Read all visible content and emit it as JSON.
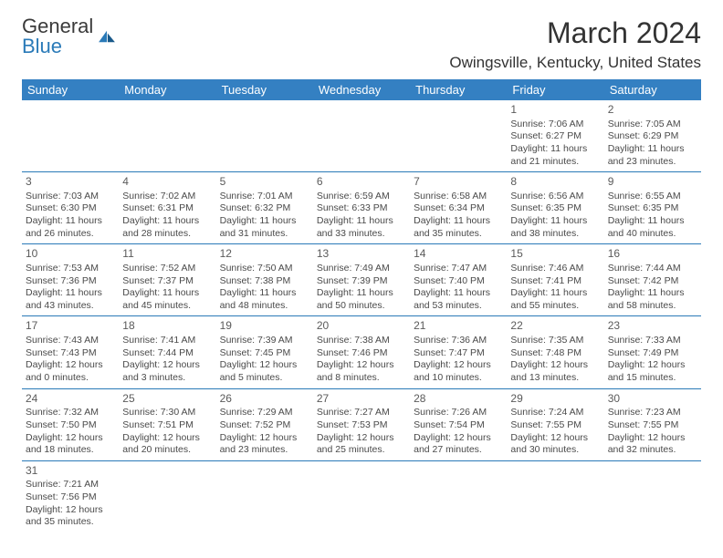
{
  "logo": {
    "text_general": "General",
    "text_blue": "Blue"
  },
  "header": {
    "month_title": "March 2024",
    "location": "Owingsville, Kentucky, United States"
  },
  "colors": {
    "header_bg": "#3480c2",
    "header_text": "#ffffff",
    "border": "#2a7ab8",
    "body_text": "#4a4a4a",
    "logo_blue": "#2a7ab8"
  },
  "weekdays": [
    "Sunday",
    "Monday",
    "Tuesday",
    "Wednesday",
    "Thursday",
    "Friday",
    "Saturday"
  ],
  "weeks": [
    [
      null,
      null,
      null,
      null,
      null,
      {
        "day": "1",
        "sunrise": "Sunrise: 7:06 AM",
        "sunset": "Sunset: 6:27 PM",
        "daylight": "Daylight: 11 hours and 21 minutes."
      },
      {
        "day": "2",
        "sunrise": "Sunrise: 7:05 AM",
        "sunset": "Sunset: 6:29 PM",
        "daylight": "Daylight: 11 hours and 23 minutes."
      }
    ],
    [
      {
        "day": "3",
        "sunrise": "Sunrise: 7:03 AM",
        "sunset": "Sunset: 6:30 PM",
        "daylight": "Daylight: 11 hours and 26 minutes."
      },
      {
        "day": "4",
        "sunrise": "Sunrise: 7:02 AM",
        "sunset": "Sunset: 6:31 PM",
        "daylight": "Daylight: 11 hours and 28 minutes."
      },
      {
        "day": "5",
        "sunrise": "Sunrise: 7:01 AM",
        "sunset": "Sunset: 6:32 PM",
        "daylight": "Daylight: 11 hours and 31 minutes."
      },
      {
        "day": "6",
        "sunrise": "Sunrise: 6:59 AM",
        "sunset": "Sunset: 6:33 PM",
        "daylight": "Daylight: 11 hours and 33 minutes."
      },
      {
        "day": "7",
        "sunrise": "Sunrise: 6:58 AM",
        "sunset": "Sunset: 6:34 PM",
        "daylight": "Daylight: 11 hours and 35 minutes."
      },
      {
        "day": "8",
        "sunrise": "Sunrise: 6:56 AM",
        "sunset": "Sunset: 6:35 PM",
        "daylight": "Daylight: 11 hours and 38 minutes."
      },
      {
        "day": "9",
        "sunrise": "Sunrise: 6:55 AM",
        "sunset": "Sunset: 6:35 PM",
        "daylight": "Daylight: 11 hours and 40 minutes."
      }
    ],
    [
      {
        "day": "10",
        "sunrise": "Sunrise: 7:53 AM",
        "sunset": "Sunset: 7:36 PM",
        "daylight": "Daylight: 11 hours and 43 minutes."
      },
      {
        "day": "11",
        "sunrise": "Sunrise: 7:52 AM",
        "sunset": "Sunset: 7:37 PM",
        "daylight": "Daylight: 11 hours and 45 minutes."
      },
      {
        "day": "12",
        "sunrise": "Sunrise: 7:50 AM",
        "sunset": "Sunset: 7:38 PM",
        "daylight": "Daylight: 11 hours and 48 minutes."
      },
      {
        "day": "13",
        "sunrise": "Sunrise: 7:49 AM",
        "sunset": "Sunset: 7:39 PM",
        "daylight": "Daylight: 11 hours and 50 minutes."
      },
      {
        "day": "14",
        "sunrise": "Sunrise: 7:47 AM",
        "sunset": "Sunset: 7:40 PM",
        "daylight": "Daylight: 11 hours and 53 minutes."
      },
      {
        "day": "15",
        "sunrise": "Sunrise: 7:46 AM",
        "sunset": "Sunset: 7:41 PM",
        "daylight": "Daylight: 11 hours and 55 minutes."
      },
      {
        "day": "16",
        "sunrise": "Sunrise: 7:44 AM",
        "sunset": "Sunset: 7:42 PM",
        "daylight": "Daylight: 11 hours and 58 minutes."
      }
    ],
    [
      {
        "day": "17",
        "sunrise": "Sunrise: 7:43 AM",
        "sunset": "Sunset: 7:43 PM",
        "daylight": "Daylight: 12 hours and 0 minutes."
      },
      {
        "day": "18",
        "sunrise": "Sunrise: 7:41 AM",
        "sunset": "Sunset: 7:44 PM",
        "daylight": "Daylight: 12 hours and 3 minutes."
      },
      {
        "day": "19",
        "sunrise": "Sunrise: 7:39 AM",
        "sunset": "Sunset: 7:45 PM",
        "daylight": "Daylight: 12 hours and 5 minutes."
      },
      {
        "day": "20",
        "sunrise": "Sunrise: 7:38 AM",
        "sunset": "Sunset: 7:46 PM",
        "daylight": "Daylight: 12 hours and 8 minutes."
      },
      {
        "day": "21",
        "sunrise": "Sunrise: 7:36 AM",
        "sunset": "Sunset: 7:47 PM",
        "daylight": "Daylight: 12 hours and 10 minutes."
      },
      {
        "day": "22",
        "sunrise": "Sunrise: 7:35 AM",
        "sunset": "Sunset: 7:48 PM",
        "daylight": "Daylight: 12 hours and 13 minutes."
      },
      {
        "day": "23",
        "sunrise": "Sunrise: 7:33 AM",
        "sunset": "Sunset: 7:49 PM",
        "daylight": "Daylight: 12 hours and 15 minutes."
      }
    ],
    [
      {
        "day": "24",
        "sunrise": "Sunrise: 7:32 AM",
        "sunset": "Sunset: 7:50 PM",
        "daylight": "Daylight: 12 hours and 18 minutes."
      },
      {
        "day": "25",
        "sunrise": "Sunrise: 7:30 AM",
        "sunset": "Sunset: 7:51 PM",
        "daylight": "Daylight: 12 hours and 20 minutes."
      },
      {
        "day": "26",
        "sunrise": "Sunrise: 7:29 AM",
        "sunset": "Sunset: 7:52 PM",
        "daylight": "Daylight: 12 hours and 23 minutes."
      },
      {
        "day": "27",
        "sunrise": "Sunrise: 7:27 AM",
        "sunset": "Sunset: 7:53 PM",
        "daylight": "Daylight: 12 hours and 25 minutes."
      },
      {
        "day": "28",
        "sunrise": "Sunrise: 7:26 AM",
        "sunset": "Sunset: 7:54 PM",
        "daylight": "Daylight: 12 hours and 27 minutes."
      },
      {
        "day": "29",
        "sunrise": "Sunrise: 7:24 AM",
        "sunset": "Sunset: 7:55 PM",
        "daylight": "Daylight: 12 hours and 30 minutes."
      },
      {
        "day": "30",
        "sunrise": "Sunrise: 7:23 AM",
        "sunset": "Sunset: 7:55 PM",
        "daylight": "Daylight: 12 hours and 32 minutes."
      }
    ],
    [
      {
        "day": "31",
        "sunrise": "Sunrise: 7:21 AM",
        "sunset": "Sunset: 7:56 PM",
        "daylight": "Daylight: 12 hours and 35 minutes."
      },
      null,
      null,
      null,
      null,
      null,
      null
    ]
  ]
}
